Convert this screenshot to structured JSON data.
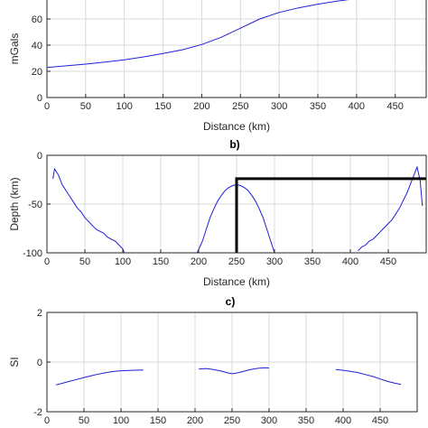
{
  "colors": {
    "series": "#1f1fd8",
    "overlay": "#000000",
    "grid": "#d9d9d9",
    "axis": "#262626"
  },
  "chart_data": [
    {
      "type": "line",
      "title": "",
      "xlabel": "Distance (km)",
      "ylabel": "mGals",
      "xlim": [
        0,
        490
      ],
      "ylim": [
        0,
        80
      ],
      "xticks": [
        0,
        50,
        100,
        150,
        200,
        250,
        300,
        350,
        400,
        450
      ],
      "yticks": [
        0,
        20,
        40,
        60
      ],
      "grid": true,
      "series": [
        {
          "values": [
            [
              0,
              23
            ],
            [
              25,
              24.2
            ],
            [
              50,
              25.5
            ],
            [
              75,
              27
            ],
            [
              100,
              28.8
            ],
            [
              125,
              31
            ],
            [
              150,
              33.6
            ],
            [
              175,
              36.5
            ],
            [
              200,
              40.5
            ],
            [
              225,
              46
            ],
            [
              250,
              53
            ],
            [
              275,
              60
            ],
            [
              300,
              65
            ],
            [
              325,
              68.5
            ],
            [
              350,
              71.3
            ],
            [
              375,
              73.6
            ],
            [
              400,
              75.6
            ],
            [
              425,
              77.2
            ],
            [
              440,
              78.3
            ]
          ]
        }
      ]
    },
    {
      "type": "line",
      "title": "b)",
      "xlabel": "Distance (km)",
      "ylabel": "Depth (km)",
      "xlim": [
        0,
        500
      ],
      "ylim": [
        -100,
        0
      ],
      "xticks": [
        0,
        50,
        100,
        150,
        200,
        250,
        300,
        350,
        400,
        450
      ],
      "yticks": [
        -100,
        -50,
        0
      ],
      "grid": true,
      "series": [
        {
          "values": [
            [
              8,
              -24
            ],
            [
              10,
              -14
            ],
            [
              15,
              -20
            ],
            [
              20,
              -30
            ],
            [
              25,
              -36
            ],
            [
              30,
              -42
            ],
            [
              35,
              -48
            ],
            [
              40,
              -54
            ],
            [
              45,
              -58
            ],
            [
              50,
              -64
            ],
            [
              55,
              -68
            ],
            [
              60,
              -72
            ],
            [
              65,
              -76
            ],
            [
              70,
              -78
            ],
            [
              75,
              -80
            ],
            [
              80,
              -84
            ],
            [
              85,
              -86
            ],
            [
              90,
              -88
            ],
            [
              95,
              -92
            ],
            [
              100,
              -96
            ],
            [
              102,
              -100
            ]
          ]
        },
        {
          "values": [
            [
              198,
              -100
            ],
            [
              205,
              -88
            ],
            [
              210,
              -76
            ],
            [
              215,
              -64
            ],
            [
              220,
              -55
            ],
            [
              225,
              -47
            ],
            [
              230,
              -41
            ],
            [
              235,
              -36
            ],
            [
              240,
              -33
            ],
            [
              245,
              -31
            ],
            [
              250,
              -30
            ],
            [
              255,
              -31
            ],
            [
              260,
              -33
            ],
            [
              265,
              -36
            ],
            [
              270,
              -41
            ],
            [
              275,
              -47
            ],
            [
              280,
              -55
            ],
            [
              285,
              -64
            ],
            [
              290,
              -76
            ],
            [
              295,
              -88
            ],
            [
              300,
              -100
            ]
          ]
        },
        {
          "values": [
            [
              410,
              -98
            ],
            [
              415,
              -94
            ],
            [
              420,
              -92
            ],
            [
              425,
              -88
            ],
            [
              430,
              -86
            ],
            [
              435,
              -82
            ],
            [
              440,
              -78
            ],
            [
              445,
              -74
            ],
            [
              450,
              -70
            ],
            [
              455,
              -66
            ],
            [
              460,
              -60
            ],
            [
              465,
              -54
            ],
            [
              470,
              -46
            ],
            [
              475,
              -38
            ],
            [
              480,
              -28
            ],
            [
              485,
              -18
            ],
            [
              488,
              -12
            ],
            [
              492,
              -26
            ],
            [
              495,
              -52
            ]
          ]
        },
        {
          "values": [
            [
              250,
              -100
            ],
            [
              250,
              -24
            ],
            [
              500,
              -24
            ]
          ]
        }
      ]
    },
    {
      "type": "line",
      "title": "c)",
      "xlabel": "",
      "ylabel": "SI",
      "xlim": [
        0,
        500
      ],
      "ylim": [
        -2,
        2
      ],
      "xticks": [
        0,
        50,
        100,
        150,
        200,
        250,
        300,
        350,
        400,
        450
      ],
      "yticks": [
        -2,
        0,
        2
      ],
      "grid": true,
      "series": [
        {
          "values": [
            [
              12,
              -0.92
            ],
            [
              20,
              -0.86
            ],
            [
              30,
              -0.78
            ],
            [
              40,
              -0.7
            ],
            [
              50,
              -0.62
            ],
            [
              60,
              -0.55
            ],
            [
              70,
              -0.48
            ],
            [
              80,
              -0.42
            ],
            [
              90,
              -0.38
            ],
            [
              100,
              -0.35
            ],
            [
              115,
              -0.33
            ],
            [
              130,
              -0.32
            ]
          ]
        },
        {
          "values": [
            [
              205,
              -0.28
            ],
            [
              215,
              -0.26
            ],
            [
              225,
              -0.3
            ],
            [
              235,
              -0.36
            ],
            [
              245,
              -0.44
            ],
            [
              250,
              -0.47
            ],
            [
              255,
              -0.45
            ],
            [
              265,
              -0.38
            ],
            [
              275,
              -0.3
            ],
            [
              285,
              -0.25
            ],
            [
              295,
              -0.23
            ],
            [
              300,
              -0.24
            ]
          ]
        },
        {
          "values": [
            [
              390,
              -0.3
            ],
            [
              400,
              -0.33
            ],
            [
              410,
              -0.37
            ],
            [
              420,
              -0.42
            ],
            [
              430,
              -0.5
            ],
            [
              440,
              -0.58
            ],
            [
              450,
              -0.68
            ],
            [
              460,
              -0.78
            ],
            [
              470,
              -0.85
            ],
            [
              478,
              -0.9
            ]
          ]
        }
      ]
    }
  ]
}
